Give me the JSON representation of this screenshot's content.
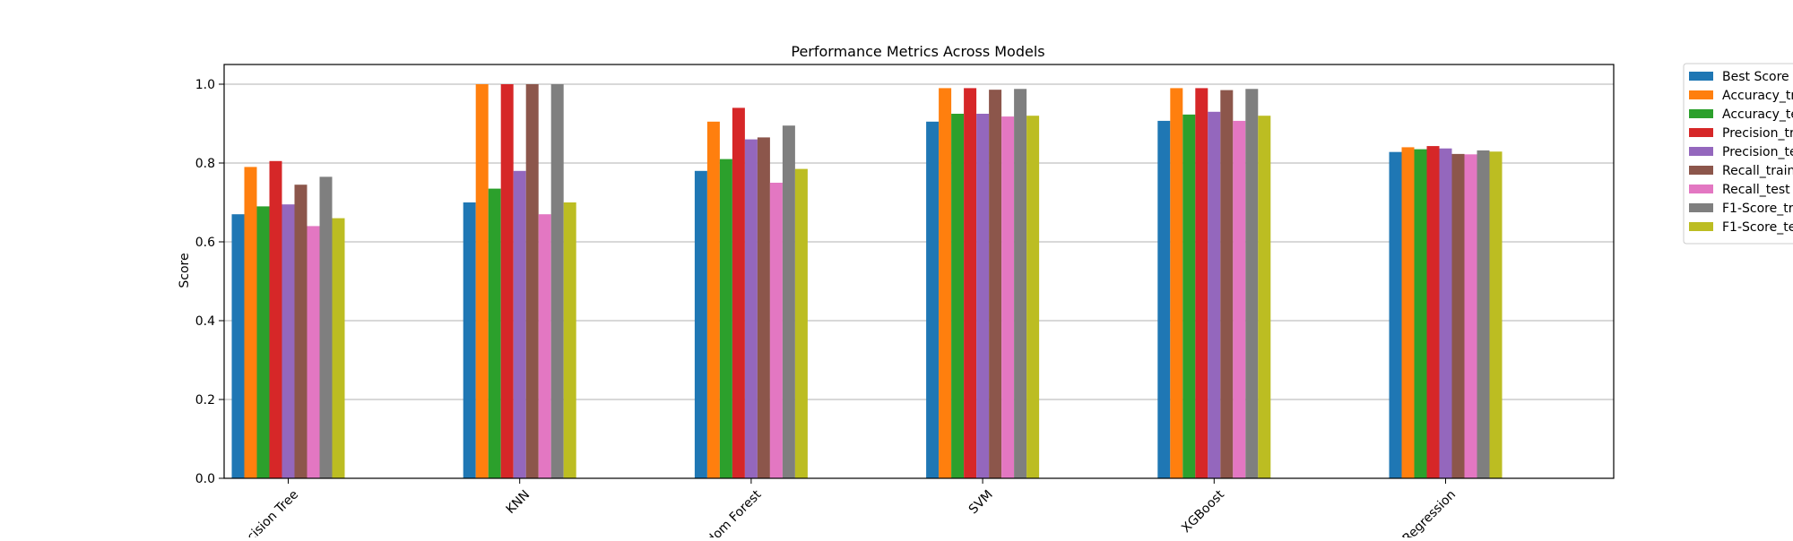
{
  "chart_data": {
    "type": "bar",
    "title": "Performance Metrics Across Models",
    "xlabel": "",
    "ylabel": "Score",
    "ylim": [
      0,
      1.05
    ],
    "yticks": [
      "0.0",
      "0.2",
      "0.4",
      "0.6",
      "0.8",
      "1.0"
    ],
    "grid": "horizontal",
    "legend_position": "outside-right",
    "categories": [
      "cision Tree",
      "KNN",
      "dom Forest",
      "SVM",
      "XGBoost",
      "Regression"
    ],
    "series": [
      {
        "name": "Best Score",
        "color": "#1f77b4",
        "values": [
          0.67,
          0.7,
          0.78,
          0.905,
          0.907,
          0.828
        ]
      },
      {
        "name": "Accuracy_tr",
        "color": "#ff7f0e",
        "values": [
          0.79,
          1.0,
          0.905,
          0.99,
          0.99,
          0.84
        ]
      },
      {
        "name": "Accuracy_te",
        "color": "#2ca02c",
        "values": [
          0.69,
          0.735,
          0.81,
          0.925,
          0.923,
          0.835
        ]
      },
      {
        "name": "Precision_tr",
        "color": "#d62728",
        "values": [
          0.805,
          1.0,
          0.94,
          0.99,
          0.99,
          0.843
        ]
      },
      {
        "name": "Precision_te",
        "color": "#9467bd",
        "values": [
          0.695,
          0.78,
          0.86,
          0.925,
          0.93,
          0.837
        ]
      },
      {
        "name": "Recall_train",
        "color": "#8c564b",
        "values": [
          0.745,
          1.0,
          0.865,
          0.986,
          0.985,
          0.823
        ]
      },
      {
        "name": "Recall_test",
        "color": "#e377c2",
        "values": [
          0.64,
          0.67,
          0.75,
          0.918,
          0.907,
          0.822
        ]
      },
      {
        "name": "F1-Score_tr",
        "color": "#7f7f7f",
        "values": [
          0.765,
          1.0,
          0.895,
          0.988,
          0.988,
          0.832
        ]
      },
      {
        "name": "F1-Score_te",
        "color": "#bcbd22",
        "values": [
          0.66,
          0.7,
          0.785,
          0.92,
          0.92,
          0.829
        ]
      }
    ]
  }
}
